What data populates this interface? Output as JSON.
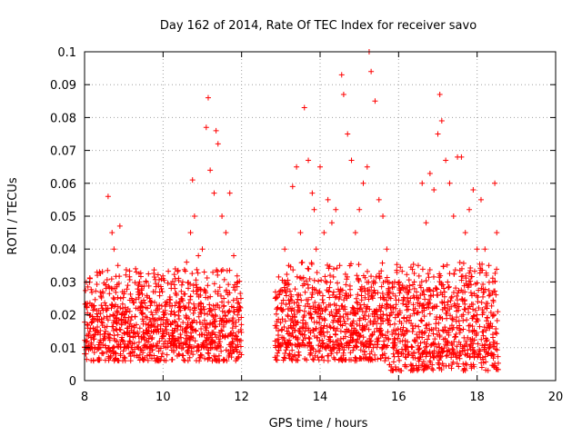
{
  "chart_data": {
    "type": "scatter",
    "title": "Day 162 of 2014, Rate Of TEC Index for receiver savo",
    "xlabel": "GPS time / hours",
    "ylabel": "ROTI / TECUs",
    "xlim": [
      8,
      20
    ],
    "ylim": [
      0,
      0.1
    ],
    "xticks": [
      "8",
      "10",
      "12",
      "14",
      "16",
      "18",
      "20"
    ],
    "xtick_values": [
      8,
      10,
      12,
      14,
      16,
      18,
      20
    ],
    "yticks": [
      "0",
      "0.01",
      "0.02",
      "0.03",
      "0.04",
      "0.05",
      "0.06",
      "0.07",
      "0.08",
      "0.09",
      "0.1"
    ],
    "ytick_values": [
      0,
      0.01,
      0.02,
      0.03,
      0.04,
      0.05,
      0.06,
      0.07,
      0.08,
      0.09,
      0.1
    ],
    "grid": true,
    "marker": "+",
    "color": "#ff0000",
    "series": [
      {
        "name": "ROTI",
        "x": [
          8.05,
          8.2,
          8.3,
          8.45,
          8.55,
          8.6,
          8.7,
          8.75,
          8.85,
          8.9,
          9.0,
          9.1,
          9.2,
          9.3,
          9.4,
          9.5,
          9.6,
          9.7,
          9.8,
          9.9,
          10.0,
          10.1,
          10.2,
          10.3,
          10.4,
          10.5,
          10.6,
          10.7,
          10.75,
          10.8,
          10.9,
          11.0,
          11.05,
          11.1,
          11.15,
          11.2,
          11.3,
          11.35,
          11.4,
          11.5,
          11.6,
          11.7,
          11.8,
          11.9,
          12.9,
          13.0,
          13.1,
          13.2,
          13.3,
          13.4,
          13.5,
          13.6,
          13.7,
          13.8,
          13.85,
          13.9,
          14.0,
          14.1,
          14.2,
          14.3,
          14.4,
          14.5,
          14.55,
          14.6,
          14.7,
          14.8,
          14.9,
          15.0,
          15.1,
          15.2,
          15.25,
          15.3,
          15.4,
          15.5,
          15.6,
          15.7,
          15.8,
          15.9,
          16.0,
          16.1,
          16.2,
          16.3,
          16.4,
          16.5,
          16.6,
          16.7,
          16.8,
          16.9,
          17.0,
          17.05,
          17.1,
          17.2,
          17.3,
          17.4,
          17.5,
          17.6,
          17.7,
          17.8,
          17.9,
          18.0,
          18.1,
          18.2,
          18.3,
          18.4,
          18.45,
          18.5
        ],
        "y": [
          0.012,
          0.018,
          0.015,
          0.022,
          0.028,
          0.056,
          0.045,
          0.04,
          0.035,
          0.047,
          0.02,
          0.016,
          0.025,
          0.034,
          0.03,
          0.018,
          0.022,
          0.015,
          0.027,
          0.019,
          0.031,
          0.024,
          0.017,
          0.028,
          0.021,
          0.03,
          0.036,
          0.045,
          0.061,
          0.05,
          0.038,
          0.04,
          0.033,
          0.077,
          0.086,
          0.064,
          0.057,
          0.076,
          0.072,
          0.05,
          0.045,
          0.057,
          0.038,
          0.03,
          0.018,
          0.022,
          0.04,
          0.035,
          0.059,
          0.065,
          0.045,
          0.083,
          0.067,
          0.057,
          0.052,
          0.04,
          0.065,
          0.045,
          0.055,
          0.048,
          0.052,
          0.035,
          0.093,
          0.087,
          0.075,
          0.067,
          0.045,
          0.052,
          0.06,
          0.065,
          0.1,
          0.094,
          0.085,
          0.055,
          0.05,
          0.04,
          0.025,
          0.03,
          0.02,
          0.015,
          0.018,
          0.025,
          0.03,
          0.035,
          0.06,
          0.048,
          0.063,
          0.058,
          0.075,
          0.087,
          0.079,
          0.067,
          0.06,
          0.05,
          0.068,
          0.068,
          0.045,
          0.052,
          0.058,
          0.04,
          0.055,
          0.04,
          0.035,
          0.03,
          0.06,
          0.045
        ],
        "bulk_segments": [
          {
            "x_range": [
              8.0,
              12.0
            ],
            "y_range": [
              0.006,
              0.03
            ]
          },
          {
            "x_range": [
              12.85,
              15.75
            ],
            "y_range": [
              0.006,
              0.032
            ]
          },
          {
            "x_range": [
              15.75,
              18.55
            ],
            "y_range": [
              0.003,
              0.032
            ]
          }
        ]
      }
    ]
  }
}
